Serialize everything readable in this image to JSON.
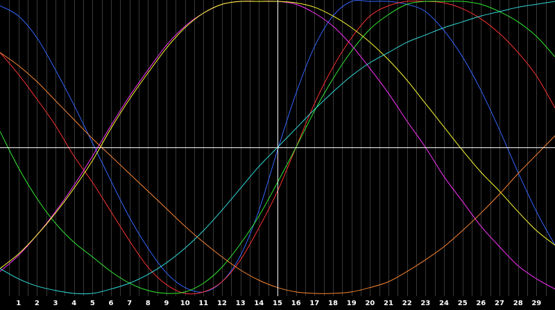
{
  "chart_data": {
    "type": "line",
    "title": "",
    "xlabel": "",
    "ylabel": "",
    "xlim": [
      0,
      30
    ],
    "ylim": [
      -1,
      1
    ],
    "grid": "vertical",
    "background": "#000000",
    "x_ticks": [
      1,
      2,
      3,
      4,
      5,
      6,
      7,
      8,
      9,
      10,
      11,
      12,
      13,
      14,
      15,
      16,
      17,
      18,
      19,
      20,
      21,
      22,
      23,
      24,
      25,
      26,
      27,
      28,
      29
    ],
    "crosshair": {
      "x": 15,
      "y": 0
    },
    "series": [
      {
        "color": "#3366ff",
        "x": [
          0,
          1,
          2,
          3,
          4,
          5,
          6,
          7,
          8,
          9,
          10,
          11,
          12,
          13,
          14,
          15,
          16,
          17,
          18,
          19,
          20,
          21,
          22,
          23,
          24,
          25,
          26,
          27,
          28,
          29,
          30
        ],
        "y": [
          0.97,
          0.9,
          0.75,
          0.53,
          0.29,
          0.03,
          -0.23,
          -0.48,
          -0.69,
          -0.86,
          -0.96,
          -0.99,
          -0.92,
          -0.74,
          -0.43,
          -0.02,
          0.37,
          0.69,
          0.9,
          1.0,
          1.0,
          1.0,
          0.98,
          0.93,
          0.8,
          0.62,
          0.39,
          0.12,
          -0.17,
          -0.44,
          -0.67
        ]
      },
      {
        "color": "#ff3333",
        "x": [
          0,
          1,
          2,
          3,
          4,
          5,
          6,
          7,
          8,
          9,
          10,
          11,
          12,
          13,
          14,
          15,
          16,
          17,
          18,
          19,
          20,
          21,
          22,
          23,
          24,
          25,
          26,
          27,
          28,
          29,
          30
        ],
        "y": [
          0.65,
          0.5,
          0.33,
          0.15,
          -0.06,
          -0.24,
          -0.44,
          -0.64,
          -0.82,
          -0.94,
          -1.0,
          -0.99,
          -0.92,
          -0.77,
          -0.55,
          -0.3,
          0.0,
          0.3,
          0.55,
          0.75,
          0.9,
          0.97,
          1.0,
          1.0,
          0.99,
          0.95,
          0.88,
          0.78,
          0.65,
          0.49,
          0.27
        ]
      },
      {
        "color": "#33ee33",
        "x": [
          0,
          1,
          2,
          3,
          4,
          5,
          6,
          7,
          8,
          9,
          10,
          11,
          12,
          13,
          14,
          15,
          16,
          17,
          18,
          19,
          20,
          21,
          22,
          23,
          24,
          25,
          26,
          27,
          28,
          29,
          30
        ],
        "y": [
          0.11,
          -0.14,
          -0.35,
          -0.52,
          -0.65,
          -0.75,
          -0.85,
          -0.93,
          -0.98,
          -1.0,
          -0.99,
          -0.93,
          -0.82,
          -0.66,
          -0.47,
          -0.24,
          0.0,
          0.25,
          0.47,
          0.66,
          0.81,
          0.91,
          0.98,
          1.0,
          1.0,
          1.0,
          0.98,
          0.93,
          0.86,
          0.76,
          0.62
        ]
      },
      {
        "color": "#ff33ff",
        "x": [
          0,
          1,
          2,
          3,
          4,
          5,
          6,
          7,
          8,
          9,
          10,
          11,
          12,
          13,
          14,
          15,
          16,
          17,
          18,
          19,
          20,
          21,
          22,
          23,
          24,
          25,
          26,
          27,
          28,
          29,
          30
        ],
        "y": [
          -0.85,
          -0.74,
          -0.6,
          -0.44,
          -0.26,
          -0.06,
          0.15,
          0.35,
          0.53,
          0.7,
          0.83,
          0.92,
          0.98,
          1.0,
          1.0,
          1.0,
          0.98,
          0.92,
          0.83,
          0.7,
          0.54,
          0.37,
          0.18,
          0.0,
          -0.2,
          -0.37,
          -0.54,
          -0.68,
          -0.81,
          -0.9,
          -0.97
        ]
      },
      {
        "color": "#ffff33",
        "x": [
          0,
          1,
          2,
          3,
          4,
          5,
          6,
          7,
          8,
          9,
          10,
          11,
          12,
          13,
          14,
          15,
          16,
          17,
          18,
          19,
          20,
          21,
          22,
          23,
          24,
          25,
          26,
          27,
          28,
          29,
          30
        ],
        "y": [
          -0.83,
          -0.73,
          -0.6,
          -0.45,
          -0.28,
          -0.09,
          0.13,
          0.33,
          0.51,
          0.68,
          0.82,
          0.92,
          0.98,
          1.0,
          1.0,
          1.0,
          0.99,
          0.96,
          0.9,
          0.82,
          0.72,
          0.6,
          0.46,
          0.3,
          0.14,
          -0.02,
          -0.17,
          -0.3,
          -0.44,
          -0.57,
          -0.67
        ]
      },
      {
        "color": "#33dddd",
        "x": [
          0,
          1,
          2,
          3,
          4,
          5,
          6,
          7,
          8,
          9,
          10,
          11,
          12,
          13,
          14,
          15,
          16,
          17,
          18,
          19,
          20,
          21,
          22,
          23,
          24,
          25,
          26,
          27,
          28,
          29,
          30
        ],
        "y": [
          -0.83,
          -0.9,
          -0.95,
          -0.98,
          -1.0,
          -1.0,
          -0.97,
          -0.93,
          -0.87,
          -0.79,
          -0.69,
          -0.57,
          -0.43,
          -0.28,
          -0.13,
          0.0,
          0.13,
          0.26,
          0.38,
          0.49,
          0.58,
          0.65,
          0.72,
          0.77,
          0.82,
          0.86,
          0.9,
          0.93,
          0.96,
          0.98,
          1.0
        ]
      },
      {
        "color": "#ff8833",
        "x": [
          0,
          1,
          2,
          3,
          4,
          5,
          6,
          7,
          8,
          9,
          10,
          11,
          12,
          13,
          14,
          15,
          16,
          17,
          18,
          19,
          20,
          21,
          22,
          23,
          24,
          25,
          26,
          27,
          28,
          29,
          30
        ],
        "y": [
          0.65,
          0.56,
          0.45,
          0.32,
          0.19,
          0.06,
          -0.06,
          -0.18,
          -0.3,
          -0.42,
          -0.54,
          -0.65,
          -0.75,
          -0.84,
          -0.91,
          -0.96,
          -0.99,
          -1.0,
          -1.0,
          -0.99,
          -0.96,
          -0.92,
          -0.85,
          -0.77,
          -0.68,
          -0.57,
          -0.45,
          -0.32,
          -0.18,
          -0.05,
          0.08
        ]
      }
    ]
  }
}
